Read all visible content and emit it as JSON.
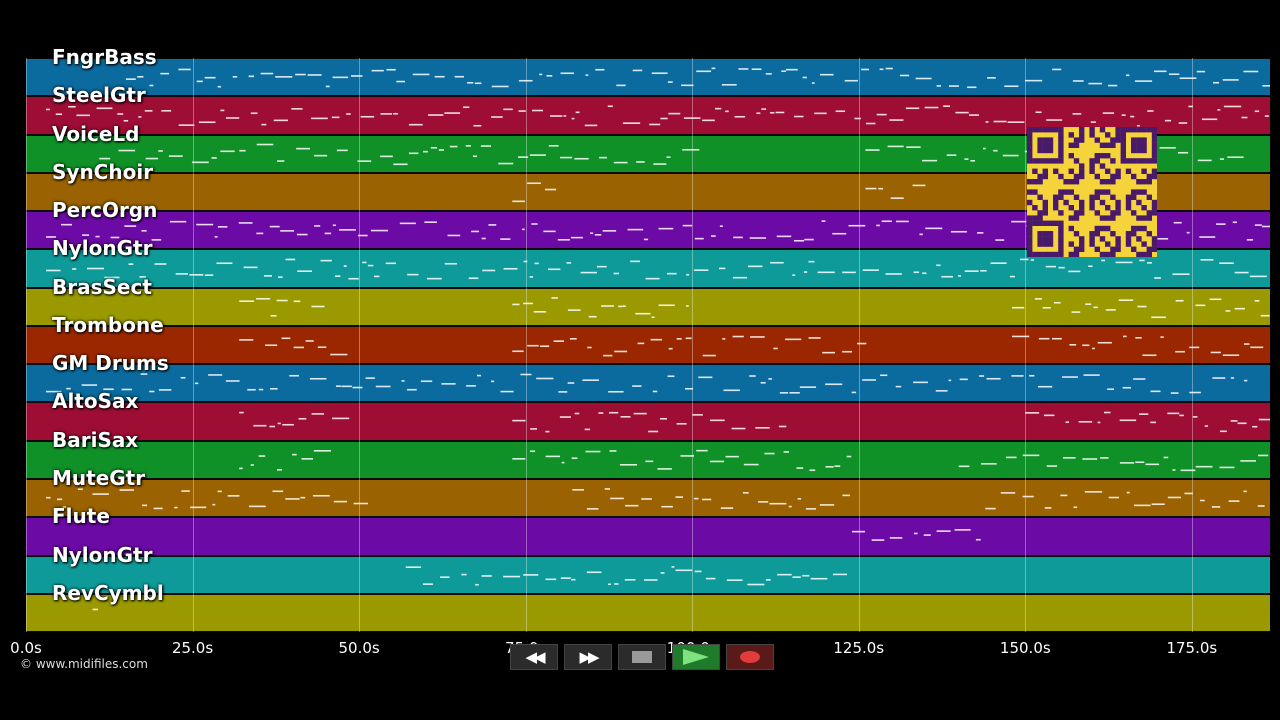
{
  "tracks": [
    {
      "name": "FngrBass",
      "color": "#0b6a9e"
    },
    {
      "name": "SteelGtr",
      "color": "#9e0d33"
    },
    {
      "name": "VoiceLd",
      "color": "#0f9127"
    },
    {
      "name": "SynChoir",
      "color": "#9a6200"
    },
    {
      "name": "PercOrgn",
      "color": "#6c0aa5"
    },
    {
      "name": "NylonGtr",
      "color": "#0f9a9a"
    },
    {
      "name": "BrasSect",
      "color": "#9a9a00"
    },
    {
      "name": "Trombone",
      "color": "#9a2700"
    },
    {
      "name": "GM Drums",
      "color": "#0b6a9e"
    },
    {
      "name": "AltoSax",
      "color": "#9e0d33"
    },
    {
      "name": "BariSax",
      "color": "#0f9127"
    },
    {
      "name": "MuteGtr",
      "color": "#9a6200"
    },
    {
      "name": "Flute",
      "color": "#6c0aa5"
    },
    {
      "name": "NylonGtr",
      "color": "#0f9a9a"
    },
    {
      "name": "RevCymbl",
      "color": "#9a9a00"
    }
  ],
  "time_axis": {
    "ticks": [
      "0.0s",
      "25.0s",
      "50.0s",
      "75.0s",
      "100.0s",
      "125.0s",
      "150.0s",
      "175.0s"
    ]
  },
  "copyright": "© www.midifiles.com",
  "transport": {
    "rewind_icon": "rewind-icon",
    "forward_icon": "fast-forward-icon",
    "stop_icon": "stop-icon",
    "play_icon": "play-icon",
    "record_icon": "record-icon"
  },
  "qr_icon": "qr-code-icon"
}
